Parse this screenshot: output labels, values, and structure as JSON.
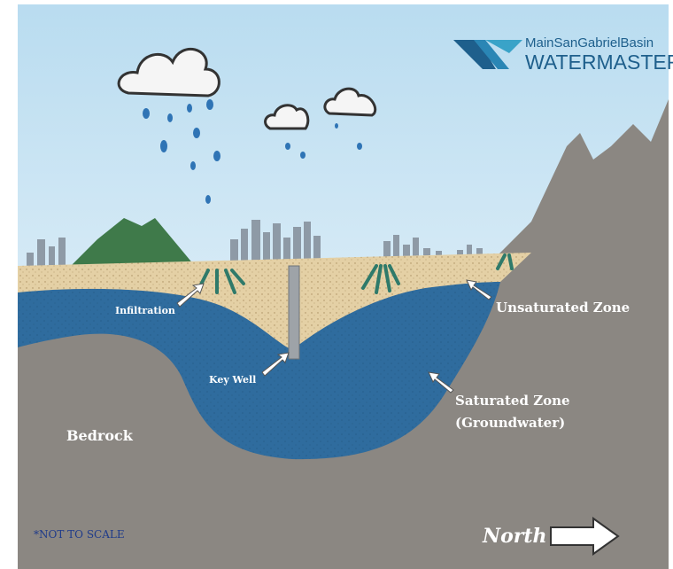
{
  "logo": {
    "line1": "MainSanGabrielBasin",
    "line2": "WATERMASTER"
  },
  "labels": {
    "infiltration": "Infiltration",
    "unsaturated": "Unsaturated Zone",
    "key_well": "Key Well",
    "saturated": "Saturated Zone",
    "groundwater": "(Groundwater)",
    "bedrock": "Bedrock"
  },
  "note": "*NOT TO SCALE",
  "compass": "North"
}
